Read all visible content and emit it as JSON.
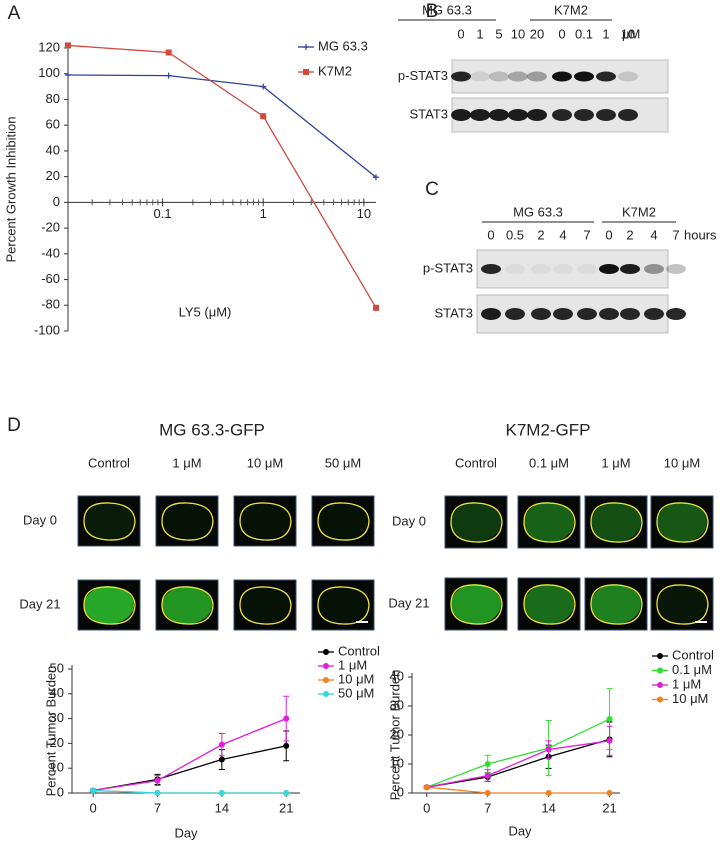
{
  "panel_labels": [
    "A",
    "B",
    "C",
    "D"
  ],
  "chart_data": [
    {
      "type": "line",
      "x_label": "LY5 (μM)",
      "y_label": "Percent Growth Inhibition",
      "x": [
        0.0115,
        0.115,
        1,
        13.2
      ],
      "xscale": "log",
      "xlim": [
        0.0115,
        13.2
      ],
      "xticks": [
        0.1,
        1,
        10
      ],
      "ylim": [
        -100,
        120
      ],
      "yticks": [
        -100,
        -80,
        -60,
        -40,
        -20,
        0,
        20,
        40,
        60,
        80,
        100,
        120
      ],
      "legend": "upper right",
      "series": [
        {
          "name": "MG 63.3",
          "color": "#2e3f9e",
          "marker": "plus",
          "values": [
            99,
            98.5,
            90,
            19.5
          ]
        },
        {
          "name": "K7M2",
          "color": "#d2493f",
          "marker": "square",
          "values": [
            122,
            116.5,
            67,
            -82
          ]
        }
      ]
    },
    {
      "type": "line",
      "x_label": "Day",
      "y_label": "Percent Tumor Burden",
      "x": [
        0,
        7,
        14,
        21
      ],
      "xlim": [
        -2.3,
        22.5
      ],
      "xticks": [
        0,
        7,
        14,
        21
      ],
      "ylim": [
        0,
        50
      ],
      "yticks": [
        0,
        10,
        20,
        30,
        40,
        50
      ],
      "legend": "right",
      "series": [
        {
          "name": "Control",
          "color": "#000000",
          "marker": "circle",
          "values": [
            1,
            5.5,
            13.5,
            19
          ],
          "errors": [
            0.5,
            2,
            4,
            6
          ]
        },
        {
          "name": "1 μM",
          "color": "#e020d8",
          "marker": "circle",
          "values": [
            1,
            5,
            19.5,
            30
          ],
          "errors": [
            0.5,
            2,
            4.5,
            9
          ]
        },
        {
          "name": "10 μM",
          "color": "#f08020",
          "marker": "circle",
          "values": [
            1,
            0,
            0,
            0
          ],
          "errors": [
            0.3,
            0,
            0,
            0
          ]
        },
        {
          "name": "50 μM",
          "color": "#30d8e0",
          "marker": "circle",
          "values": [
            1,
            0,
            0,
            0
          ],
          "errors": [
            0.3,
            0,
            0,
            0
          ]
        }
      ]
    },
    {
      "type": "line",
      "x_label": "Day",
      "y_label": "Percent Tumor Burden",
      "x": [
        0,
        7,
        14,
        21
      ],
      "xlim": [
        -1.7,
        22.2
      ],
      "xticks": [
        0,
        7,
        14,
        21
      ],
      "ylim": [
        0,
        40
      ],
      "yticks": [
        0,
        10,
        20,
        30,
        40
      ],
      "legend": "right",
      "series": [
        {
          "name": "Control",
          "color": "#000000",
          "marker": "circle",
          "values": [
            2,
            5.5,
            12.5,
            18.5
          ],
          "errors": [
            0.5,
            1.5,
            4,
            6
          ]
        },
        {
          "name": "0.1 μM",
          "color": "#30e030",
          "marker": "circle",
          "values": [
            2,
            10,
            15.5,
            25.5
          ],
          "errors": [
            0.5,
            3,
            9.5,
            10.5
          ]
        },
        {
          "name": "1 μM",
          "color": "#e020d8",
          "marker": "circle",
          "values": [
            2,
            6,
            15,
            18
          ],
          "errors": [
            0.5,
            2,
            3,
            5
          ]
        },
        {
          "name": "10 μM",
          "color": "#f08020",
          "marker": "circle",
          "values": [
            2,
            0,
            0,
            0
          ],
          "errors": [
            0.3,
            0,
            0,
            0
          ]
        }
      ]
    }
  ],
  "blot_b": {
    "groups": [
      "MG 63.3",
      "K7M2"
    ],
    "lanes": [
      "0",
      "1",
      "5",
      "10",
      "20",
      "0",
      "0.1",
      "1",
      "10"
    ],
    "unit": "μM",
    "rows": [
      "p-STAT3",
      "STAT3"
    ]
  },
  "blot_c": {
    "groups": [
      "MG  63.3",
      "K7M2"
    ],
    "lanes": [
      "0",
      "0.5",
      "2",
      "4",
      "7",
      "0",
      "2",
      "4",
      "7"
    ],
    "unit": "hours",
    "rows": [
      "p-STAT3",
      "STAT3"
    ]
  },
  "imaging": [
    {
      "title": "MG 63.3-GFP",
      "columns": [
        "Control",
        "1 μM",
        "10 μM",
        "50 μM"
      ],
      "rows": [
        "Day 0",
        "Day 21"
      ]
    },
    {
      "title": "K7M2-GFP",
      "columns": [
        "Control",
        "0.1 μM",
        "1 μM",
        "10 μM"
      ],
      "rows": [
        "Day 0",
        "Day 21"
      ]
    }
  ]
}
